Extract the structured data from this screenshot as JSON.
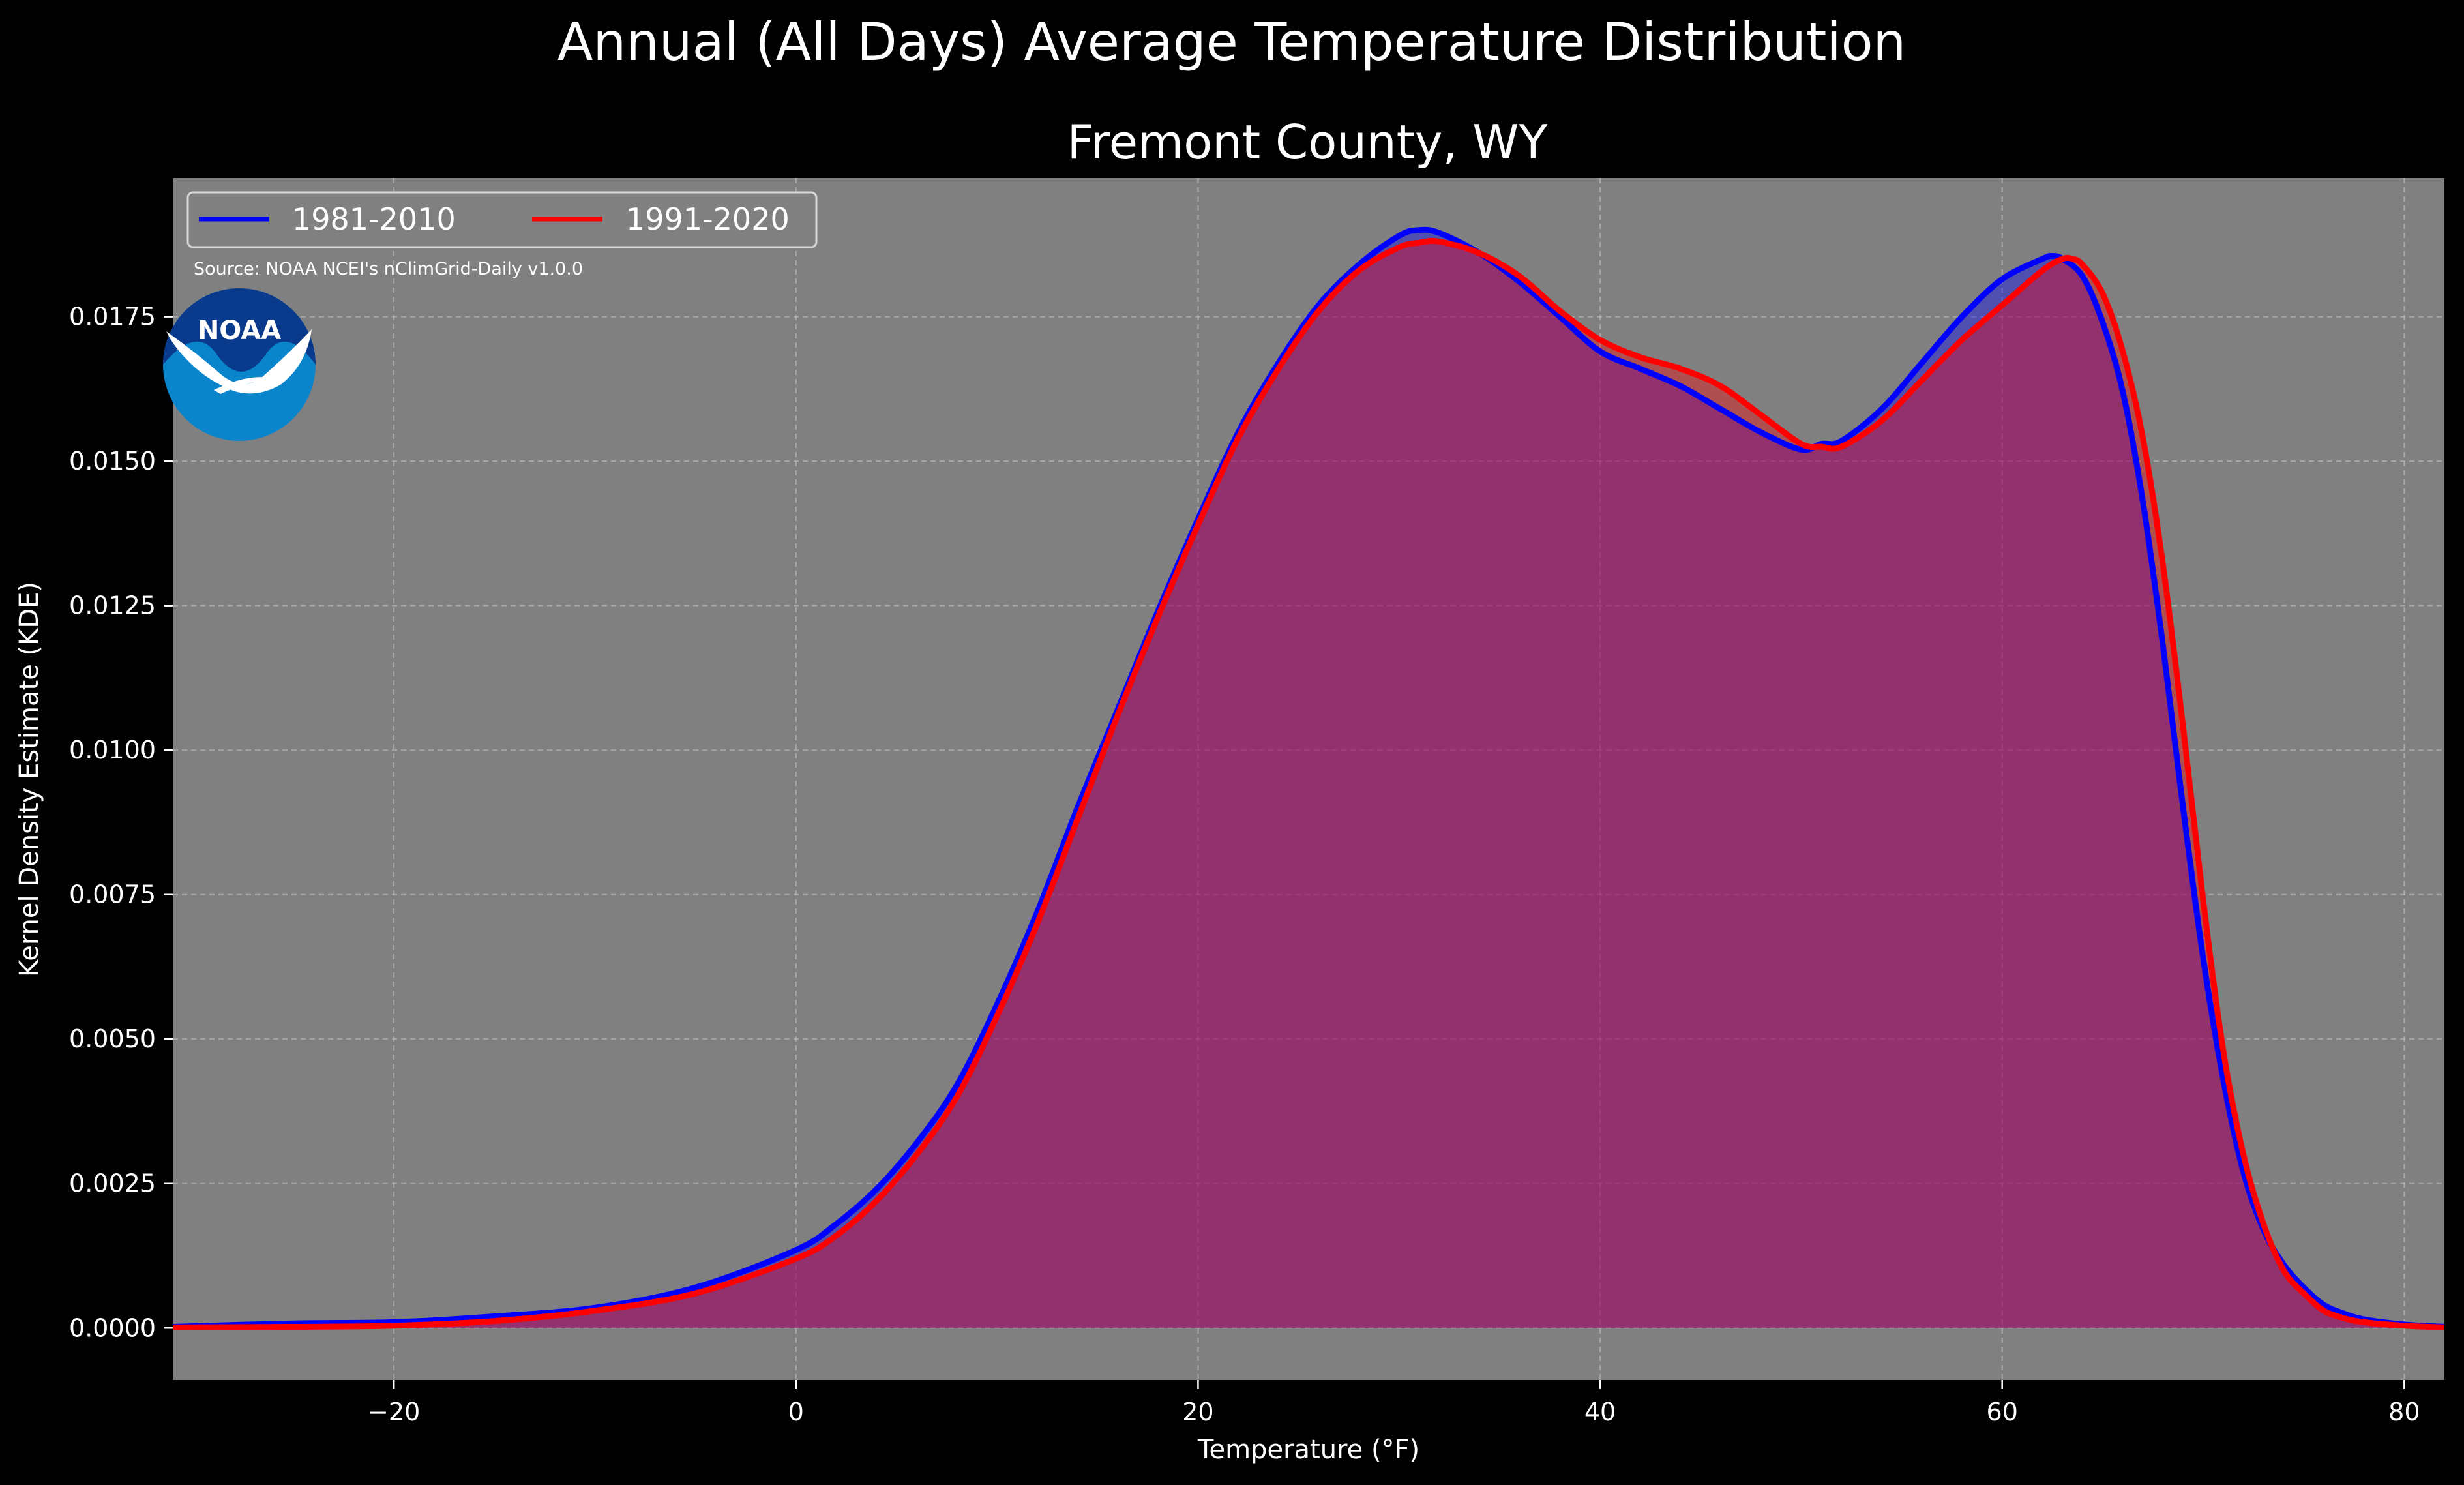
{
  "suptitle": "Annual (All Days) Average Temperature Distribution",
  "subtitle": "Fremont County, WY",
  "source": "Source: NOAA NCEI's nClimGrid-Daily v1.0.0",
  "logo_text": "NOAA",
  "colors": {
    "figure_bg": "#000000",
    "plot_bg": "#808080",
    "series_1981": "#0000ff",
    "series_1991": "#ff0000",
    "fill": "#a0175a",
    "logo_dark": "#0a3a8c",
    "logo_light": "#0a85cc"
  },
  "chart_data": {
    "type": "area",
    "title": "Fremont County, WY",
    "xlabel": "Temperature (°F)",
    "ylabel": "Kernel Density Estimate (KDE)",
    "xlim": [
      -31,
      82
    ],
    "ylim": [
      -0.0009,
      0.0199
    ],
    "xticks": [
      -20,
      0,
      20,
      40,
      60,
      80
    ],
    "xtick_labels": [
      "−20",
      "0",
      "20",
      "40",
      "60",
      "80"
    ],
    "yticks": [
      0,
      0.0025,
      0.005,
      0.0075,
      0.01,
      0.0125,
      0.015,
      0.0175
    ],
    "ytick_labels": [
      "0.0000",
      "0.0025",
      "0.0050",
      "0.0075",
      "0.0100",
      "0.0125",
      "0.0150",
      "0.0175"
    ],
    "grid": true,
    "legend_placement": "top-left",
    "series": [
      {
        "name": "1981-2010",
        "color": "#0000ff",
        "x": [
          -31,
          -25,
          -20,
          -15,
          -10,
          -5,
          0,
          2,
          4,
          6,
          8,
          10,
          12,
          14,
          16,
          18,
          20,
          22,
          24,
          26,
          28,
          30,
          31,
          32,
          34,
          36,
          38,
          40,
          42,
          44,
          46,
          48,
          50,
          51,
          52,
          54,
          56,
          58,
          60,
          62,
          62.5,
          63,
          64,
          65,
          66,
          67,
          68,
          69,
          70,
          71,
          72,
          73,
          74,
          75,
          76,
          77,
          78,
          80,
          82
        ],
        "y": [
          2e-05,
          8e-05,
          0.0001,
          0.0002,
          0.00035,
          0.0007,
          0.00135,
          0.0018,
          0.0024,
          0.0032,
          0.0042,
          0.0056,
          0.0072,
          0.009,
          0.0107,
          0.0124,
          0.014,
          0.0155,
          0.0167,
          0.0177,
          0.0184,
          0.0189,
          0.019,
          0.01895,
          0.0186,
          0.0181,
          0.0175,
          0.0169,
          0.0166,
          0.0163,
          0.0159,
          0.0155,
          0.0152,
          0.0153,
          0.01535,
          0.0159,
          0.0167,
          0.0175,
          0.01815,
          0.0185,
          0.01855,
          0.0185,
          0.0182,
          0.0174,
          0.0162,
          0.0143,
          0.0118,
          0.009,
          0.0064,
          0.0043,
          0.0027,
          0.0017,
          0.0011,
          0.0007,
          0.0004,
          0.00025,
          0.00015,
          6e-05,
          2e-05
        ]
      },
      {
        "name": "1991-2020",
        "color": "#ff0000",
        "x": [
          -31,
          -25,
          -20,
          -15,
          -10,
          -5,
          0,
          2,
          4,
          6,
          8,
          10,
          12,
          14,
          16,
          18,
          20,
          22,
          24,
          26,
          28,
          30,
          31,
          32,
          34,
          36,
          38,
          40,
          42,
          44,
          46,
          48,
          50,
          51,
          52,
          54,
          56,
          58,
          60,
          62,
          63,
          63.5,
          64,
          65,
          66,
          67,
          68,
          69,
          70,
          71,
          72,
          73,
          74,
          75,
          76,
          77,
          78,
          80,
          82
        ],
        "y": [
          1e-05,
          2e-05,
          4e-05,
          0.00012,
          0.0003,
          0.0006,
          0.0012,
          0.0016,
          0.0022,
          0.003,
          0.004,
          0.0054,
          0.007,
          0.0088,
          0.0106,
          0.0123,
          0.0139,
          0.0154,
          0.0166,
          0.0176,
          0.0183,
          0.0187,
          0.01878,
          0.0188,
          0.0186,
          0.0182,
          0.0176,
          0.0171,
          0.0168,
          0.0166,
          0.0163,
          0.0158,
          0.0153,
          0.01525,
          0.01525,
          0.0157,
          0.0164,
          0.0171,
          0.0177,
          0.0183,
          0.0185,
          0.0185,
          0.0184,
          0.0179,
          0.0169,
          0.0154,
          0.0132,
          0.0104,
          0.0074,
          0.0048,
          0.003,
          0.0018,
          0.001,
          0.0006,
          0.0003,
          0.00017,
          0.0001,
          4e-05,
          1e-05
        ]
      }
    ]
  }
}
